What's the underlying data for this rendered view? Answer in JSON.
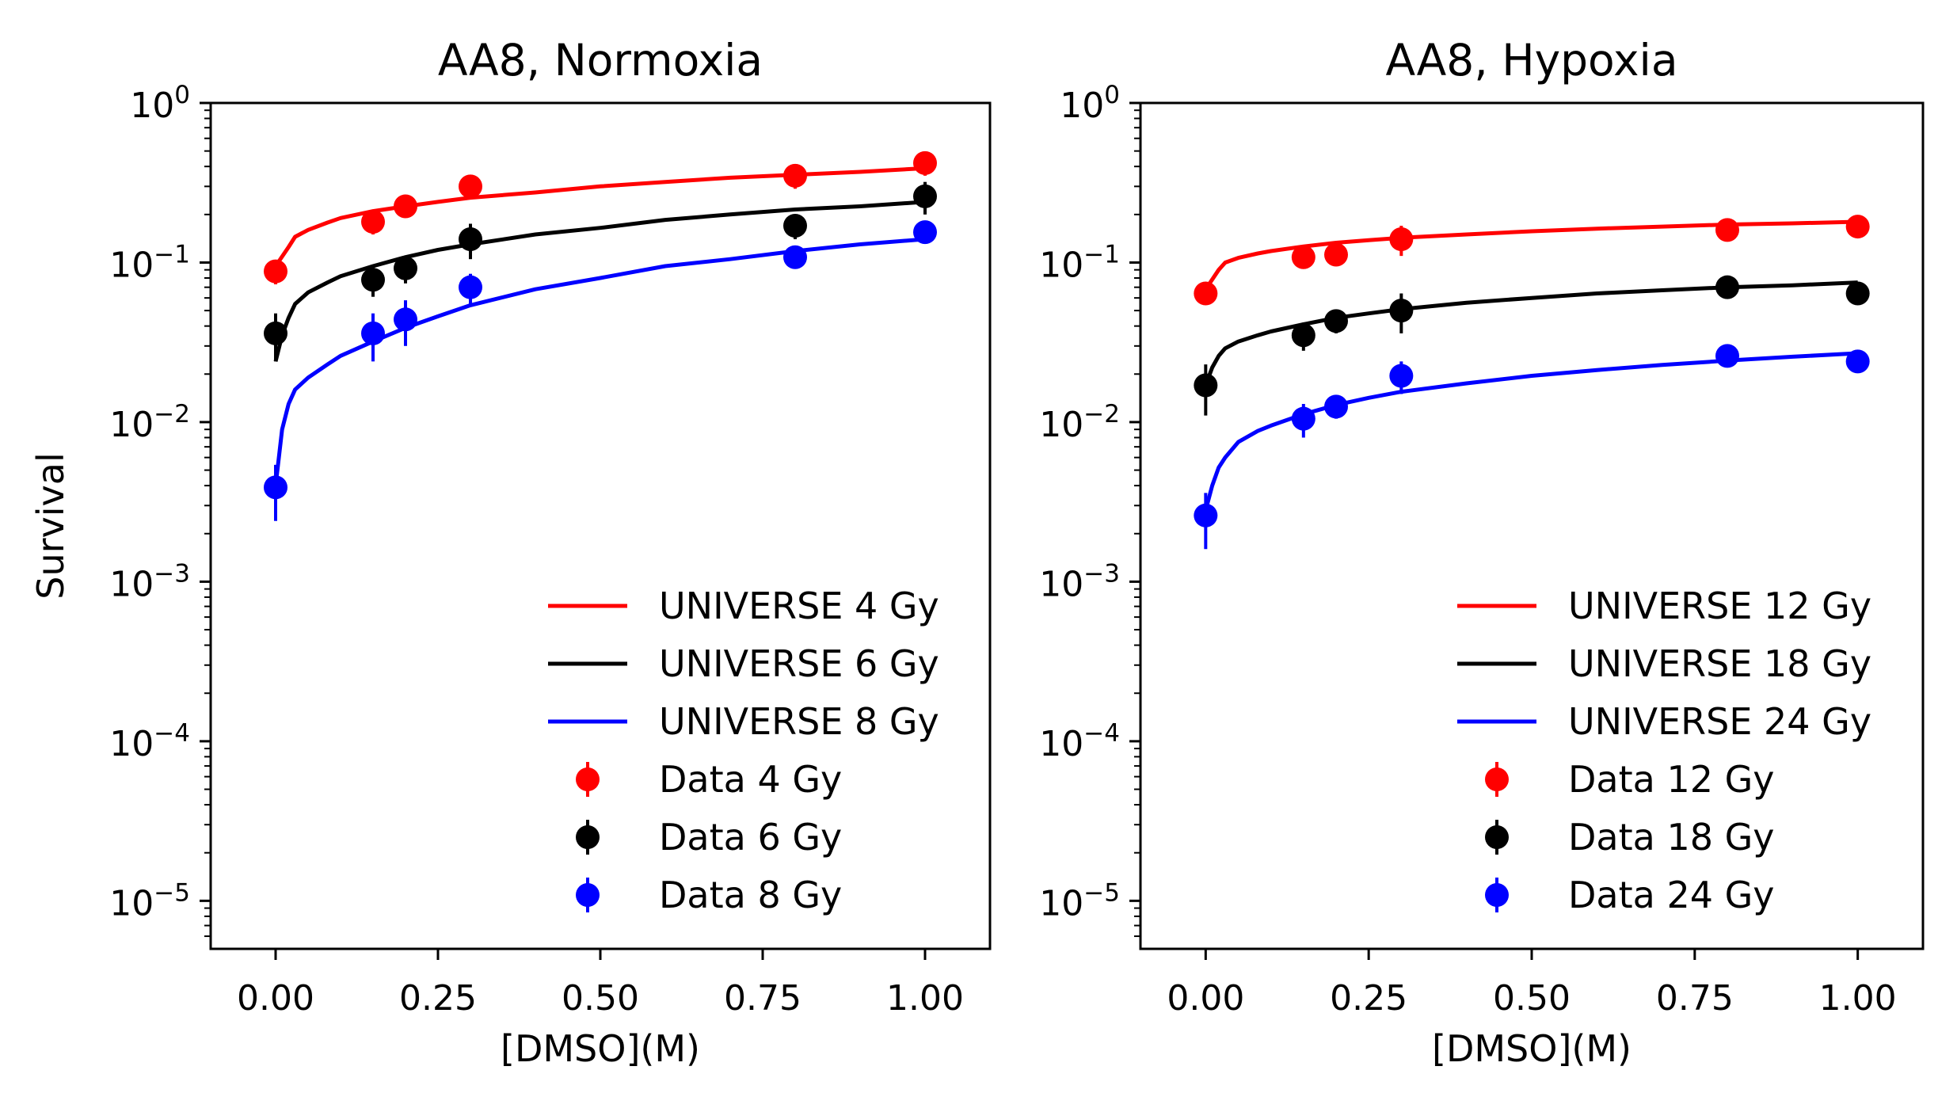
{
  "chart_data": [
    {
      "type": "line",
      "title": "AA8, Normoxia",
      "xlabel": "[DMSO](M)",
      "ylabel": "Survival",
      "yscale": "log",
      "xlim": [
        -0.1,
        1.1
      ],
      "ylim": [
        5e-06,
        1
      ],
      "xticks": [
        "0.00",
        "0.25",
        "0.50",
        "0.75",
        "1.00"
      ],
      "yticks": [
        {
          "base": "10",
          "exp": "0"
        },
        {
          "base": "10",
          "exp": "−1"
        },
        {
          "base": "10",
          "exp": "−2"
        },
        {
          "base": "10",
          "exp": "−3"
        },
        {
          "base": "10",
          "exp": "−4"
        },
        {
          "base": "10",
          "exp": "−5"
        }
      ],
      "legend_position": "lower-right",
      "series": [
        {
          "name": "UNIVERSE 4 Gy",
          "kind": "line",
          "color": "#ff0000",
          "x": [
            0.0,
            0.02,
            0.03,
            0.05,
            0.08,
            0.1,
            0.15,
            0.2,
            0.25,
            0.3,
            0.4,
            0.5,
            0.6,
            0.7,
            0.8,
            0.9,
            1.0
          ],
          "y": [
            0.095,
            0.125,
            0.145,
            0.16,
            0.178,
            0.19,
            0.21,
            0.225,
            0.24,
            0.255,
            0.275,
            0.3,
            0.32,
            0.34,
            0.355,
            0.37,
            0.39
          ]
        },
        {
          "name": "UNIVERSE 6 Gy",
          "kind": "line",
          "color": "#000000",
          "x": [
            0.0,
            0.01,
            0.02,
            0.03,
            0.05,
            0.08,
            0.1,
            0.15,
            0.2,
            0.25,
            0.3,
            0.4,
            0.5,
            0.6,
            0.7,
            0.8,
            0.9,
            1.0
          ],
          "y": [
            0.024,
            0.035,
            0.045,
            0.055,
            0.065,
            0.075,
            0.082,
            0.095,
            0.108,
            0.12,
            0.13,
            0.15,
            0.165,
            0.185,
            0.2,
            0.215,
            0.225,
            0.24
          ]
        },
        {
          "name": "UNIVERSE 8 Gy",
          "kind": "line",
          "color": "#0000ff",
          "x": [
            0.0,
            0.01,
            0.02,
            0.03,
            0.05,
            0.08,
            0.1,
            0.15,
            0.2,
            0.25,
            0.3,
            0.4,
            0.5,
            0.6,
            0.7,
            0.8,
            0.9,
            1.0
          ],
          "y": [
            0.004,
            0.009,
            0.013,
            0.016,
            0.019,
            0.023,
            0.026,
            0.032,
            0.039,
            0.046,
            0.054,
            0.068,
            0.08,
            0.095,
            0.105,
            0.118,
            0.13,
            0.14
          ]
        },
        {
          "name": "Data 4 Gy",
          "kind": "points",
          "color": "#ff0000",
          "x": [
            0.0,
            0.15,
            0.2,
            0.3,
            0.8,
            1.0
          ],
          "y": [
            0.088,
            0.18,
            0.225,
            0.3,
            0.35,
            0.42
          ],
          "err": [
            0.015,
            0.03,
            0.03,
            0.04,
            0.06,
            0.07
          ]
        },
        {
          "name": "Data 6 Gy",
          "kind": "points",
          "color": "#000000",
          "x": [
            0.0,
            0.15,
            0.2,
            0.3,
            0.8,
            1.0
          ],
          "y": [
            0.036,
            0.078,
            0.092,
            0.14,
            0.17,
            0.26
          ],
          "err": [
            0.012,
            0.017,
            0.018,
            0.035,
            0.03,
            0.06
          ]
        },
        {
          "name": "Data 8 Gy",
          "kind": "points",
          "color": "#0000ff",
          "x": [
            0.0,
            0.15,
            0.2,
            0.3,
            0.8,
            1.0
          ],
          "y": [
            0.0039,
            0.036,
            0.044,
            0.07,
            0.108,
            0.155
          ],
          "err": [
            0.0015,
            0.012,
            0.014,
            0.015,
            0.015,
            0.02
          ]
        }
      ]
    },
    {
      "type": "line",
      "title": "AA8, Hypoxia",
      "xlabel": "[DMSO](M)",
      "ylabel": "",
      "yscale": "log",
      "xlim": [
        -0.1,
        1.1
      ],
      "ylim": [
        5e-06,
        1
      ],
      "xticks": [
        "0.00",
        "0.25",
        "0.50",
        "0.75",
        "1.00"
      ],
      "yticks": [
        {
          "base": "10",
          "exp": "0"
        },
        {
          "base": "10",
          "exp": "−1"
        },
        {
          "base": "10",
          "exp": "−2"
        },
        {
          "base": "10",
          "exp": "−3"
        },
        {
          "base": "10",
          "exp": "−4"
        },
        {
          "base": "10",
          "exp": "−5"
        }
      ],
      "legend_position": "lower-right",
      "series": [
        {
          "name": "UNIVERSE 12 Gy",
          "kind": "line",
          "color": "#ff0000",
          "x": [
            0.0,
            0.02,
            0.03,
            0.05,
            0.08,
            0.1,
            0.15,
            0.2,
            0.25,
            0.3,
            0.4,
            0.5,
            0.6,
            0.7,
            0.8,
            0.9,
            1.0
          ],
          "y": [
            0.068,
            0.09,
            0.1,
            0.107,
            0.114,
            0.118,
            0.126,
            0.133,
            0.138,
            0.143,
            0.15,
            0.157,
            0.163,
            0.168,
            0.173,
            0.176,
            0.18
          ]
        },
        {
          "name": "UNIVERSE 18 Gy",
          "kind": "line",
          "color": "#000000",
          "x": [
            0.0,
            0.01,
            0.02,
            0.03,
            0.05,
            0.08,
            0.1,
            0.15,
            0.2,
            0.25,
            0.3,
            0.4,
            0.5,
            0.6,
            0.7,
            0.8,
            0.9,
            1.0
          ],
          "y": [
            0.017,
            0.022,
            0.026,
            0.029,
            0.032,
            0.035,
            0.037,
            0.041,
            0.045,
            0.048,
            0.051,
            0.056,
            0.06,
            0.064,
            0.067,
            0.07,
            0.072,
            0.075
          ]
        },
        {
          "name": "UNIVERSE 24 Gy",
          "kind": "line",
          "color": "#0000ff",
          "x": [
            0.0,
            0.01,
            0.02,
            0.03,
            0.05,
            0.08,
            0.1,
            0.15,
            0.2,
            0.25,
            0.3,
            0.4,
            0.5,
            0.6,
            0.7,
            0.8,
            0.9,
            1.0
          ],
          "y": [
            0.0028,
            0.004,
            0.0052,
            0.006,
            0.0075,
            0.0088,
            0.0095,
            0.0112,
            0.0128,
            0.0142,
            0.0155,
            0.0175,
            0.0195,
            0.0212,
            0.0228,
            0.0243,
            0.0257,
            0.027
          ]
        },
        {
          "name": "Data 12 Gy",
          "kind": "points",
          "color": "#ff0000",
          "x": [
            0.0,
            0.15,
            0.2,
            0.3,
            0.8,
            1.0
          ],
          "y": [
            0.064,
            0.108,
            0.112,
            0.14,
            0.16,
            0.168
          ],
          "err": [
            0.007,
            0.012,
            0.012,
            0.03,
            0.02,
            0.02
          ]
        },
        {
          "name": "Data 18 Gy",
          "kind": "points",
          "color": "#000000",
          "x": [
            0.0,
            0.15,
            0.2,
            0.3,
            0.8,
            1.0
          ],
          "y": [
            0.017,
            0.035,
            0.043,
            0.05,
            0.07,
            0.064
          ],
          "err": [
            0.006,
            0.007,
            0.007,
            0.014,
            0.007,
            0.006
          ]
        },
        {
          "name": "Data 24 Gy",
          "kind": "points",
          "color": "#0000ff",
          "x": [
            0.0,
            0.15,
            0.2,
            0.3,
            0.8,
            1.0
          ],
          "y": [
            0.0026,
            0.0105,
            0.0125,
            0.0195,
            0.026,
            0.024
          ],
          "err": [
            0.001,
            0.0025,
            0.002,
            0.0045,
            0.004,
            0.003
          ]
        }
      ]
    }
  ]
}
